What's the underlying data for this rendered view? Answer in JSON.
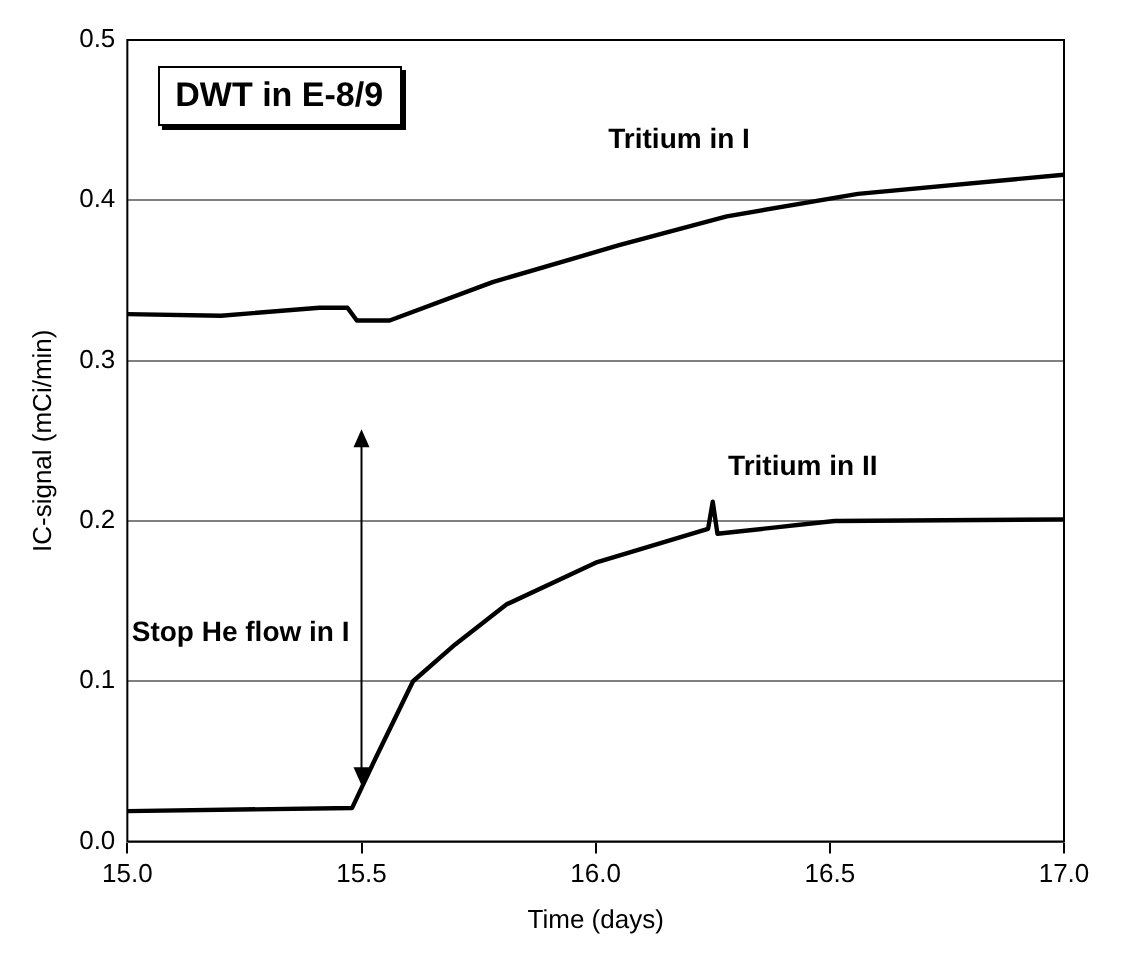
{
  "chart_data": {
    "type": "line",
    "title": "DWT in E-8/9",
    "xlabel": "Time (days)",
    "ylabel": "IC-signal (mCi/min)",
    "xlim": [
      15,
      17
    ],
    "xticks": [
      {
        "value": 15,
        "label": "15.0"
      },
      {
        "value": 15.5,
        "label": "15.5"
      },
      {
        "value": 16,
        "label": "16.0"
      },
      {
        "value": 16.5,
        "label": "16.5"
      },
      {
        "value": 17,
        "label": "17.0"
      }
    ],
    "ylim": [
      0,
      0.5
    ],
    "yticks": [
      {
        "value": 0,
        "label": "0.0"
      },
      {
        "value": 0.1,
        "label": "0.1"
      },
      {
        "value": 0.2,
        "label": "0.2"
      },
      {
        "value": 0.3,
        "label": "0.3"
      },
      {
        "value": 0.4,
        "label": "0.4"
      },
      {
        "value": 0.5,
        "label": "0.5"
      }
    ],
    "grid": "y",
    "legend": false,
    "marker": "none",
    "line_style": "solid",
    "series": [
      {
        "name": "Tritium in I",
        "color": "#000000",
        "x": [
          15,
          15.2,
          15.41,
          15.47,
          15.49,
          15.56,
          15.78,
          16.05,
          16.28,
          16.56,
          17
        ],
        "values": [
          0.329,
          0.328,
          0.333,
          0.333,
          0.325,
          0.325,
          0.349,
          0.372,
          0.39,
          0.404,
          0.416
        ]
      },
      {
        "name": "Tritium in II",
        "color": "#000000",
        "x": [
          15,
          15.48,
          15.53,
          15.61,
          15.7,
          15.81,
          16,
          16.24,
          16.25,
          16.26,
          16.51,
          17
        ],
        "values": [
          0.019,
          0.021,
          0.052,
          0.1,
          0.123,
          0.148,
          0.174,
          0.195,
          0.212,
          0.192,
          0.2,
          0.201
        ]
      }
    ],
    "annotations": [
      "Stop He flow in I"
    ]
  }
}
